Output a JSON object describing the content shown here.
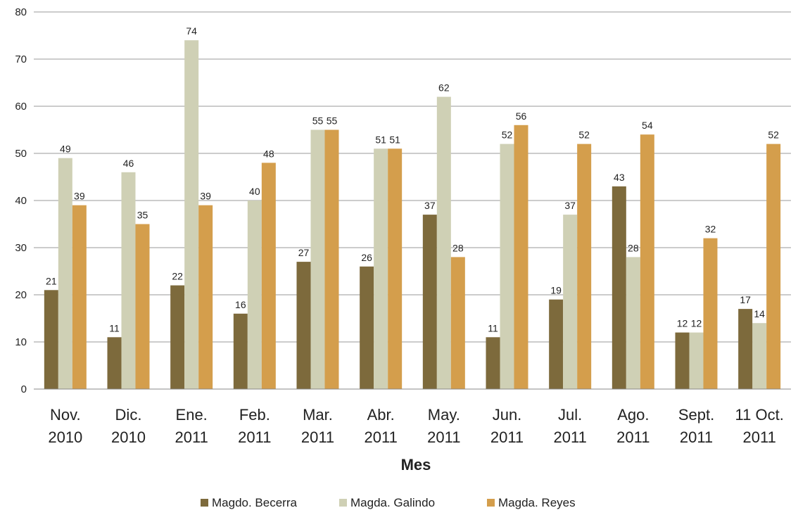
{
  "chart_data": {
    "type": "bar",
    "xlabel": "Mes",
    "ylabel": "",
    "ylim": [
      0,
      80
    ],
    "yticks": [
      0,
      10,
      20,
      30,
      40,
      50,
      60,
      70,
      80
    ],
    "grid": true,
    "legend_position": "bottom",
    "categories": [
      [
        "Nov.",
        "2010"
      ],
      [
        "Dic.",
        "2010"
      ],
      [
        "Ene.",
        "2011"
      ],
      [
        "Feb.",
        "2011"
      ],
      [
        "Mar.",
        "2011"
      ],
      [
        "Abr.",
        "2011"
      ],
      [
        "May.",
        "2011"
      ],
      [
        "Jun.",
        "2011"
      ],
      [
        "Jul.",
        "2011"
      ],
      [
        "Ago.",
        "2011"
      ],
      [
        "Sept.",
        "2011"
      ],
      [
        "11 Oct.",
        "2011"
      ]
    ],
    "series": [
      {
        "name": "Magdo. Becerra",
        "color": "#7d6a3c",
        "values": [
          21,
          11,
          22,
          16,
          27,
          26,
          37,
          11,
          19,
          43,
          12,
          null
        ]
      },
      {
        "name": "Magda. Galindo",
        "color": "#cfd0b5",
        "values": [
          49,
          46,
          74,
          40,
          55,
          51,
          62,
          52,
          37,
          28,
          12,
          14
        ]
      },
      {
        "name": "Magda. Reyes",
        "color": "#d49e4c",
        "values": [
          39,
          35,
          39,
          48,
          55,
          51,
          28,
          56,
          52,
          54,
          32,
          52
        ]
      }
    ],
    "extra_labels": [
      {
        "text": "17",
        "category_index": 11,
        "series_index": 0,
        "value": 17
      }
    ]
  }
}
